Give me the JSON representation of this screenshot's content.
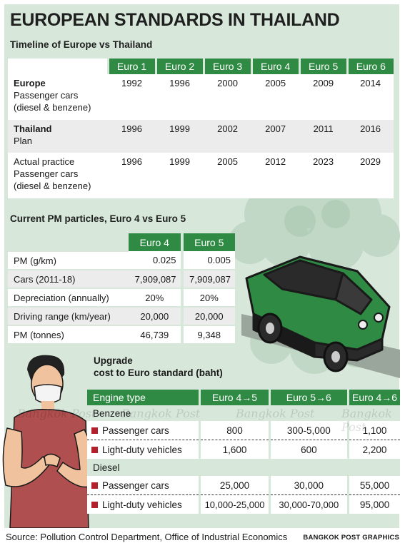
{
  "title": "EUROPEAN STANDARDS IN THAILAND",
  "timeline": {
    "subtitle": "Timeline of Europe vs Thailand",
    "headers": [
      "Euro 1",
      "Euro 2",
      "Euro 3",
      "Euro 4",
      "Euro 5",
      "Euro 6"
    ],
    "rows": [
      {
        "label_bold": "Europe",
        "label_lines": "Passenger cars (diesel & benzene)",
        "values": [
          "1992",
          "1996",
          "2000",
          "2005",
          "2009",
          "2014"
        ]
      },
      {
        "label_bold": "Thailand",
        "label_lines": "Plan",
        "values": [
          "1996",
          "1999",
          "2002",
          "2007",
          "2011",
          "2016"
        ]
      },
      {
        "label_bold": "",
        "label_lines": "Actual practice Passenger cars (diesel & benzene)",
        "values": [
          "1996",
          "1999",
          "2005",
          "2012",
          "2023",
          "2029"
        ]
      }
    ]
  },
  "pm": {
    "subtitle": "Current PM particles, Euro 4 vs Euro 5",
    "headers": [
      "Euro 4",
      "Euro 5"
    ],
    "rows": [
      {
        "label": "PM (g/km)",
        "values": [
          "0.025",
          "0.005"
        ]
      },
      {
        "label": "Cars (2011-18)",
        "values": [
          "7,909,087",
          "7,909,087"
        ]
      },
      {
        "label": "Depreciation (annually)",
        "values": [
          "20%",
          "20%"
        ]
      },
      {
        "label": "Driving range (km/year)",
        "values": [
          "20,000",
          "20,000"
        ]
      },
      {
        "label": "PM (tonnes)",
        "values": [
          "46,739",
          "9,348"
        ]
      }
    ]
  },
  "upgrade": {
    "subtitle_line1": "Upgrade",
    "subtitle_line2": "cost to Euro standard (baht)",
    "headers": [
      "Engine type",
      "Euro 4→5",
      "Euro 5→6",
      "Euro 4→6"
    ],
    "benzene_label": "Benzene",
    "diesel_label": "Diesel",
    "benzene": [
      {
        "label": "Passenger cars",
        "values": [
          "800",
          "300-5,000",
          "1,100"
        ]
      },
      {
        "label": "Light-duty vehicles",
        "values": [
          "1,600",
          "600",
          "2,200"
        ]
      }
    ],
    "diesel": [
      {
        "label": "Passenger cars",
        "values": [
          "25,000",
          "30,000",
          "55,000"
        ]
      },
      {
        "label": "Light-duty vehicles",
        "values": [
          "10,000-25,000",
          "30,000-70,000",
          "95,000"
        ]
      }
    ]
  },
  "watermark": "Bangkok Post",
  "source": "Source: Pollution Control Department, Office of Industrial Economics",
  "credit": "BANGKOK POST GRAPHICS",
  "colors": {
    "accent": "#2f8a43",
    "background": "#d7e8db",
    "marker": "#b3202c"
  }
}
